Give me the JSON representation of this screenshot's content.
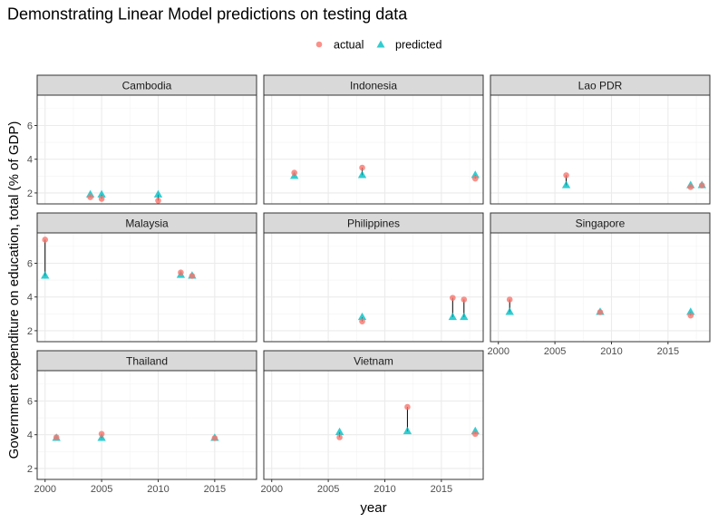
{
  "chart_data": {
    "type": "scatter",
    "layout": "facet_wrap",
    "title": "Demonstrating Linear Model predictions on testing data",
    "xlabel": "year",
    "ylabel": "Government expenditure on education, total (% of GDP)",
    "xlim": [
      1999.3,
      2018.7
    ],
    "ylim": [
      1.35,
      7.8
    ],
    "x_ticks": [
      2000,
      2005,
      2010,
      2015
    ],
    "y_ticks": [
      2,
      4,
      6
    ],
    "grid": true,
    "legend": {
      "position": "top",
      "entries": [
        {
          "name": "actual",
          "shape": "circle",
          "color": "#F8766D"
        },
        {
          "name": "predicted",
          "shape": "triangle",
          "color": "#00BFC4"
        }
      ]
    },
    "segment_color": "#000000",
    "facets": [
      {
        "name": "Cambodia",
        "points": [
          {
            "year": 2004,
            "actual": 1.75,
            "predicted": 1.9
          },
          {
            "year": 2005,
            "actual": 1.65,
            "predicted": 1.9
          },
          {
            "year": 2010,
            "actual": 1.55,
            "predicted": 1.9
          }
        ]
      },
      {
        "name": "Indonesia",
        "points": [
          {
            "year": 2002,
            "actual": 3.2,
            "predicted": 3.0
          },
          {
            "year": 2008,
            "actual": 3.5,
            "predicted": 3.05
          },
          {
            "year": 2018,
            "actual": 2.85,
            "predicted": 3.05
          }
        ]
      },
      {
        "name": "Lao PDR",
        "points": [
          {
            "year": 2006,
            "actual": 3.05,
            "predicted": 2.45
          },
          {
            "year": 2017,
            "actual": 2.35,
            "predicted": 2.45
          },
          {
            "year": 2018,
            "actual": 2.45,
            "predicted": 2.45
          }
        ]
      },
      {
        "name": "Malaysia",
        "points": [
          {
            "year": 2000,
            "actual": 7.4,
            "predicted": 5.25
          },
          {
            "year": 2012,
            "actual": 5.45,
            "predicted": 5.3
          },
          {
            "year": 2013,
            "actual": 5.25,
            "predicted": 5.25
          }
        ]
      },
      {
        "name": "Philippines",
        "points": [
          {
            "year": 2008,
            "actual": 2.55,
            "predicted": 2.8
          },
          {
            "year": 2016,
            "actual": 3.95,
            "predicted": 2.8
          },
          {
            "year": 2017,
            "actual": 3.85,
            "predicted": 2.8
          }
        ]
      },
      {
        "name": "Singapore",
        "points": [
          {
            "year": 2001,
            "actual": 3.85,
            "predicted": 3.1
          },
          {
            "year": 2009,
            "actual": 3.1,
            "predicted": 3.1
          },
          {
            "year": 2017,
            "actual": 2.9,
            "predicted": 3.1
          }
        ]
      },
      {
        "name": "Thailand",
        "points": [
          {
            "year": 2001,
            "actual": 3.85,
            "predicted": 3.8
          },
          {
            "year": 2005,
            "actual": 4.05,
            "predicted": 3.8
          },
          {
            "year": 2015,
            "actual": 3.8,
            "predicted": 3.8
          }
        ]
      },
      {
        "name": "Vietnam",
        "points": [
          {
            "year": 2006,
            "actual": 3.85,
            "predicted": 4.15
          },
          {
            "year": 2012,
            "actual": 5.65,
            "predicted": 4.2
          },
          {
            "year": 2018,
            "actual": 4.05,
            "predicted": 4.2
          }
        ]
      }
    ]
  }
}
